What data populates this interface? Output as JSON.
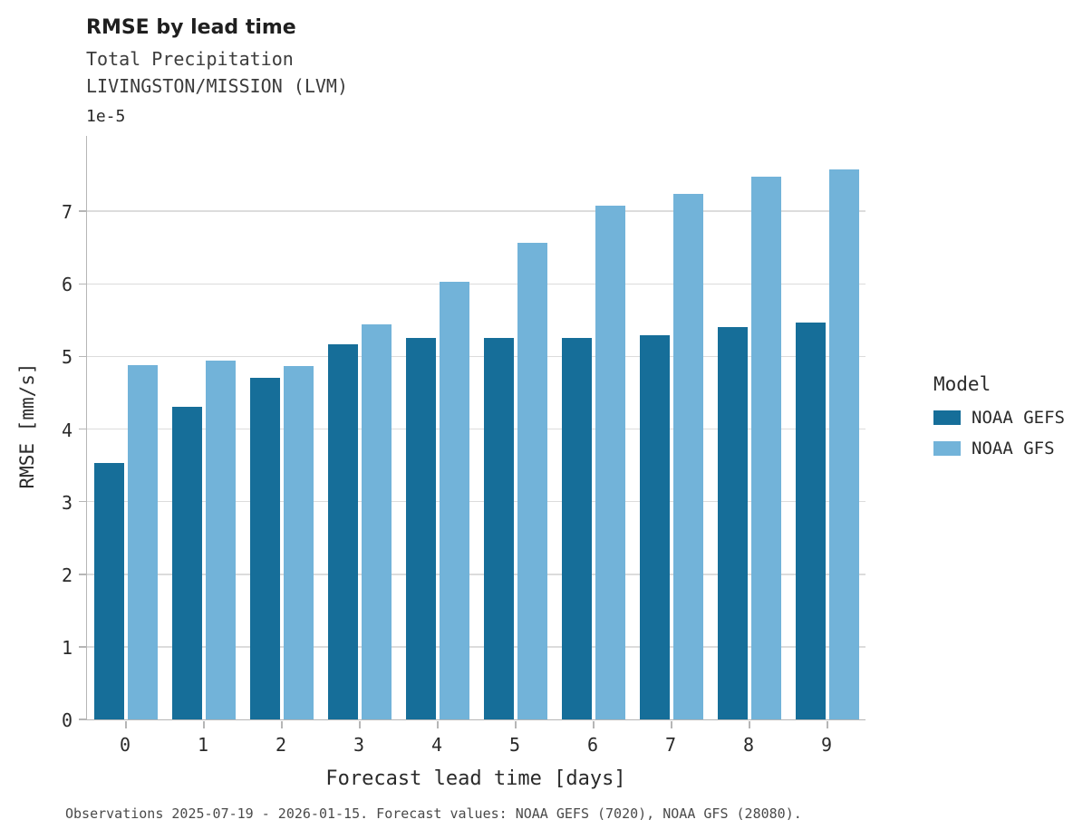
{
  "header": {
    "title": "RMSE by lead time",
    "subtitle1": "Total Precipitation",
    "subtitle2": "LIVINGSTON/MISSION (LVM)"
  },
  "chart_data": {
    "type": "bar",
    "title": "RMSE by lead time",
    "subtitle": [
      "Total Precipitation",
      "LIVINGSTON/MISSION (LVM)"
    ],
    "categories": [
      "0",
      "1",
      "2",
      "3",
      "4",
      "5",
      "6",
      "7",
      "8",
      "9"
    ],
    "series": [
      {
        "name": "NOAA GEFS",
        "color": "#166e99",
        "values": [
          3.53,
          4.31,
          4.71,
          5.17,
          5.26,
          5.25,
          5.25,
          5.29,
          5.41,
          5.47
        ]
      },
      {
        "name": "NOAA GFS",
        "color": "#72b3d9",
        "values": [
          4.88,
          4.94,
          4.87,
          5.44,
          6.03,
          6.57,
          7.08,
          7.24,
          7.47,
          7.57
        ]
      }
    ],
    "value_scale": "1e-5",
    "y_offset_label": "1e-5",
    "xlabel": "Forecast lead time [days]",
    "ylabel": "RMSE [mm/s]",
    "yticks": [
      0,
      1,
      2,
      3,
      4,
      5,
      6,
      7
    ],
    "ylim": [
      0,
      8.05
    ],
    "grid": true,
    "legend_title": "Model",
    "legend_position": "right"
  },
  "caption": "Observations 2025-07-19 - 2026-01-15. Forecast values: NOAA GEFS (7020), NOAA GFS (28080)."
}
